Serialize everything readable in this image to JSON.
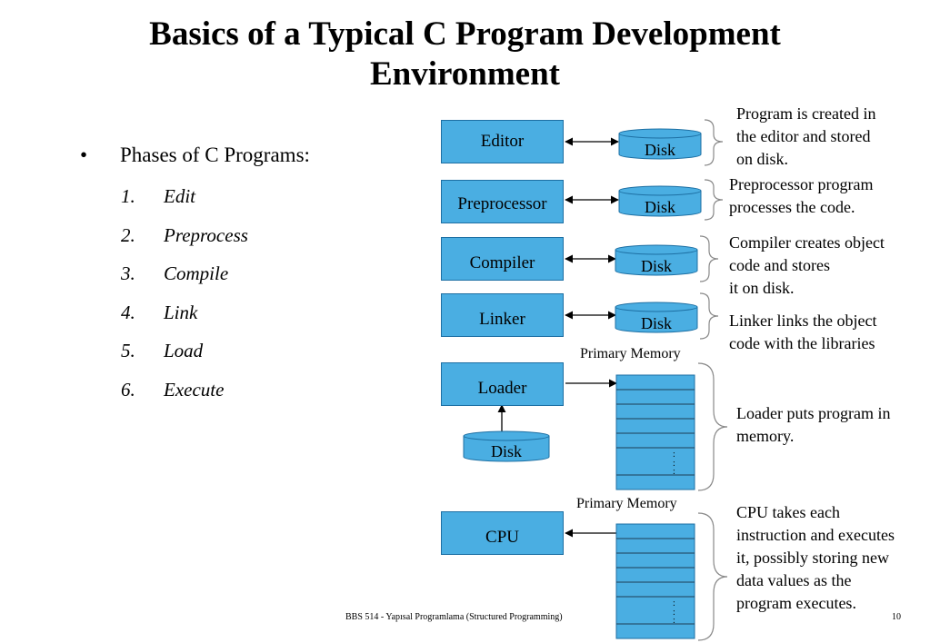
{
  "title": {
    "line1": "Basics of a Typical C Program Development",
    "line2": "Environment"
  },
  "bullets": {
    "marker": "•",
    "heading": "Phases of C Programs:",
    "steps": [
      {
        "num": "1.",
        "label": "Edit"
      },
      {
        "num": "2.",
        "label": "Preprocess"
      },
      {
        "num": "3.",
        "label": "Compile"
      },
      {
        "num": "4.",
        "label": "Link"
      },
      {
        "num": "5.",
        "label": "Load"
      },
      {
        "num": "6.",
        "label": "Execute"
      }
    ]
  },
  "diagram": {
    "phases": {
      "editor": "Editor",
      "preprocessor": "Preprocessor",
      "compiler": "Compiler",
      "linker": "Linker",
      "loader": "Loader",
      "cpu": "CPU"
    },
    "disk_label": "Disk",
    "memory_label": "Primary Memory",
    "memory_ellipsis": ":",
    "notes": {
      "editor": [
        "Program is created in",
        "the editor and stored",
        "on disk."
      ],
      "preprocessor": [
        "Preprocessor program",
        "processes the code."
      ],
      "compiler": [
        "Compiler creates object",
        "code and stores",
        "it on disk."
      ],
      "linker": [
        "Linker links the object",
        "code with the libraries"
      ],
      "loader": [
        "Loader puts program in",
        "memory."
      ],
      "cpu": [
        "CPU takes each",
        "instruction and executes",
        "it, possibly storing new",
        "data values as the",
        "program executes."
      ]
    },
    "colors": {
      "box_fill": "#4aaee2",
      "box_border": "#1d6fa3"
    }
  },
  "footer": {
    "text": "BBS 514 - Yapısal Programlama (Structured Programming)",
    "page": "10"
  }
}
